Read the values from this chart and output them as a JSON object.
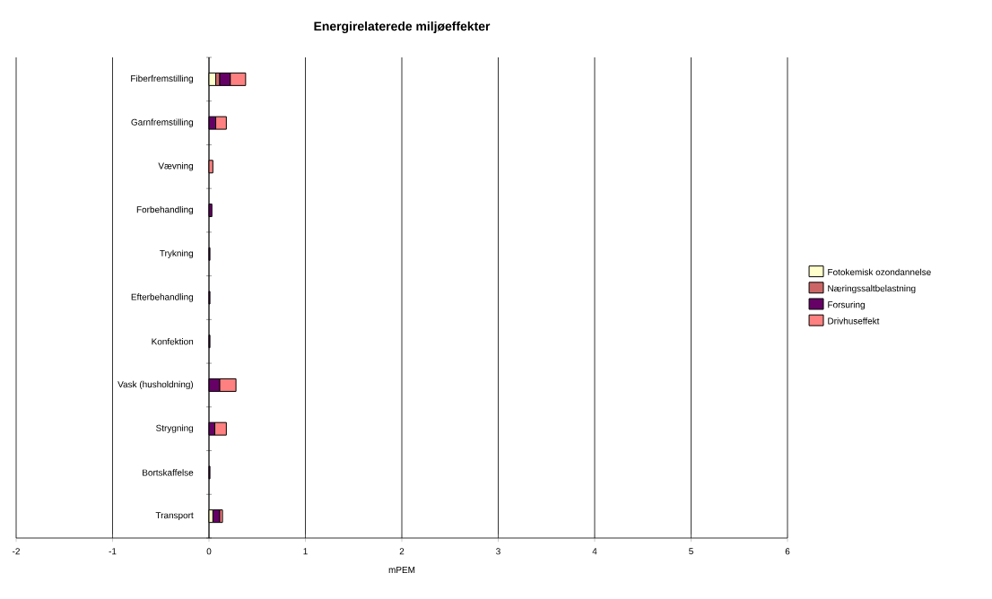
{
  "chart_data": {
    "type": "bar",
    "orientation": "horizontal",
    "stacked": true,
    "title": "Energirelaterede miljøeffekter",
    "xlabel": "mPEM",
    "categories": [
      "Fiberfremstilling",
      "Garnfremstilling",
      "Vævning",
      "Forbehandling",
      "Trykning",
      "Efterbehandling",
      "Konfektion",
      "Vask (husholdning)",
      "Strygning",
      "Bortskaffelse",
      "Transport"
    ],
    "series": [
      {
        "name": "Fotokemisk ozondannelse",
        "color": "#ffffcc",
        "values": [
          0.07,
          0,
          0,
          0,
          0,
          0,
          0,
          0,
          0,
          0,
          0.04
        ]
      },
      {
        "name": "Næringssaltbelastning",
        "color": "#cc6666",
        "values": [
          0.04,
          0,
          0,
          0,
          0,
          0,
          0,
          0,
          0,
          0,
          0
        ]
      },
      {
        "name": "Forsuring",
        "color": "#660066",
        "values": [
          0.11,
          0.07,
          0,
          0.03,
          0.01,
          0.01,
          0.01,
          0.11,
          0.06,
          0.01,
          0.07
        ]
      },
      {
        "name": "Drivhuseffekt",
        "color": "#ff8080",
        "values": [
          0.16,
          0.11,
          0.04,
          0,
          0,
          0,
          0,
          0.17,
          0.12,
          0,
          0.03
        ]
      }
    ],
    "xlim": [
      -2,
      6
    ],
    "xticks": [
      -2,
      -1,
      0,
      1,
      2,
      3,
      4,
      5,
      6
    ],
    "grid": "x",
    "legend": "right"
  }
}
